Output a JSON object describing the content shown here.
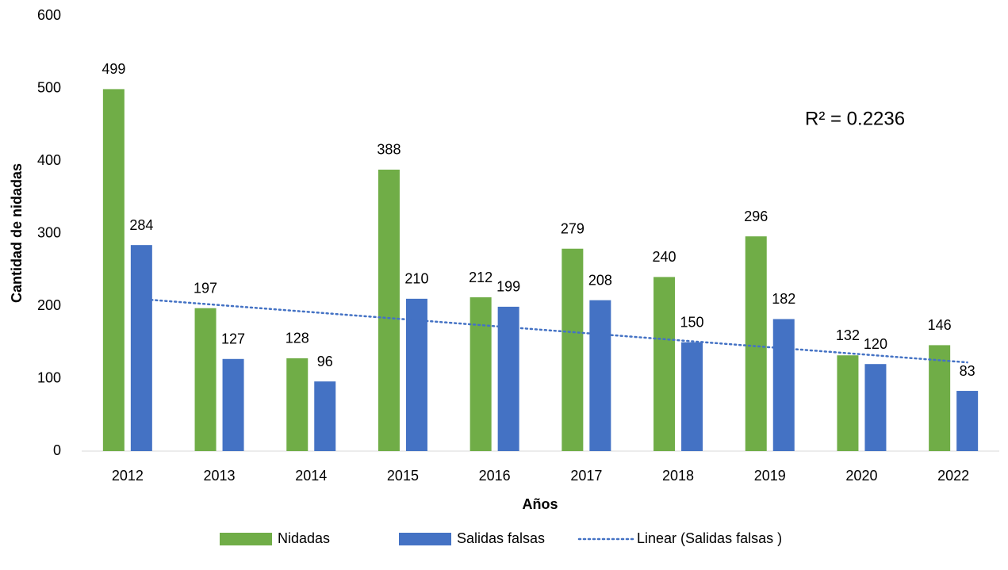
{
  "chart_data": {
    "type": "bar",
    "categories": [
      "2012",
      "2013",
      "2014",
      "2015",
      "2016",
      "2017",
      "2018",
      "2019",
      "2020",
      "2022"
    ],
    "series": [
      {
        "name": "Nidadas",
        "color": "#70ad47",
        "values": [
          499,
          197,
          128,
          388,
          212,
          279,
          240,
          296,
          132,
          146
        ]
      },
      {
        "name": "Salidas falsas",
        "color": "#4472c4",
        "values": [
          284,
          127,
          96,
          210,
          199,
          208,
          150,
          182,
          120,
          83
        ]
      }
    ],
    "trendline": {
      "name": "Linear (Salidas falsas )",
      "series": 1,
      "type": "linear",
      "color": "#4472c4",
      "annotation": "R² = 0.2236"
    },
    "xlabel": "Años",
    "ylabel": "Cantidad de nidadas",
    "ylim": [
      0,
      600
    ],
    "yticks": [
      0,
      100,
      200,
      300,
      400,
      500,
      600
    ],
    "grid": false,
    "legend": "bottom"
  }
}
